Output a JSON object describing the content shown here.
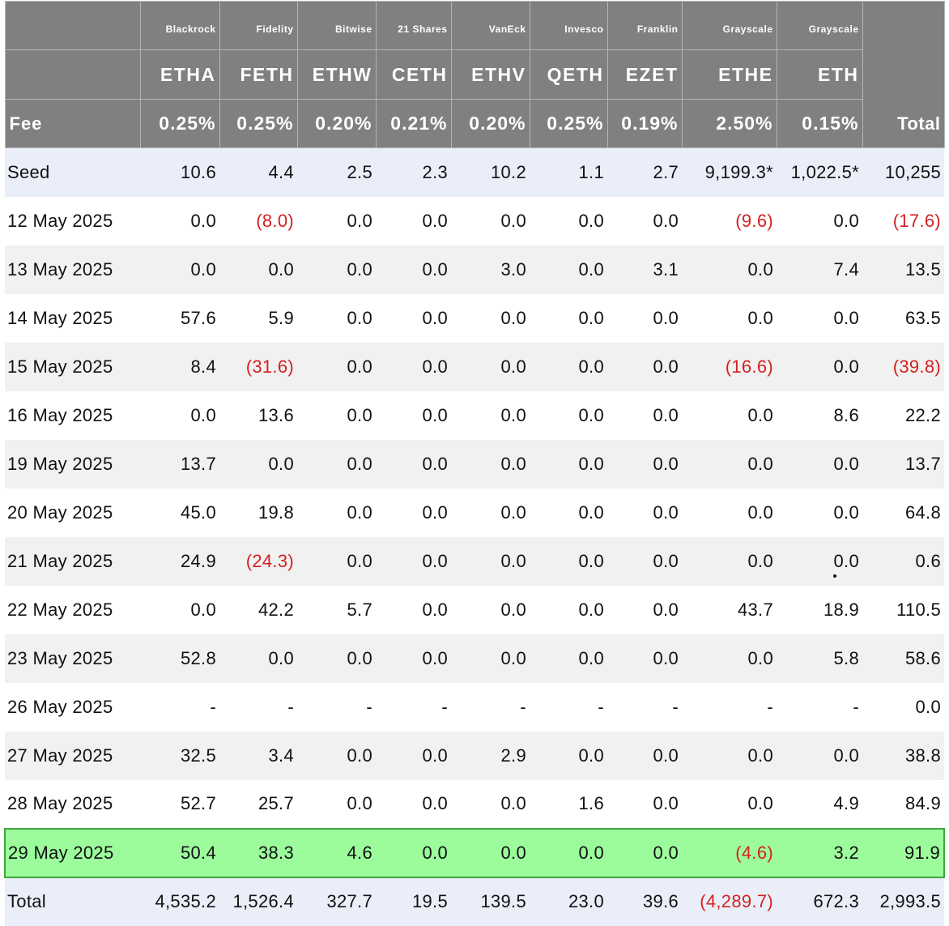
{
  "chart_data": {
    "type": "table",
    "corner_label": "Fee",
    "total_header": "Total",
    "columns": [
      {
        "issuer": "Blackrock",
        "ticker": "ETHA",
        "fee": "0.25%"
      },
      {
        "issuer": "Fidelity",
        "ticker": "FETH",
        "fee": "0.25%"
      },
      {
        "issuer": "Bitwise",
        "ticker": "ETHW",
        "fee": "0.20%"
      },
      {
        "issuer": "21 Shares",
        "ticker": "CETH",
        "fee": "0.21%"
      },
      {
        "issuer": "VanEck",
        "ticker": "ETHV",
        "fee": "0.20%"
      },
      {
        "issuer": "Invesco",
        "ticker": "QETH",
        "fee": "0.25%"
      },
      {
        "issuer": "Franklin",
        "ticker": "EZET",
        "fee": "0.19%"
      },
      {
        "issuer": "Grayscale",
        "ticker": "ETHE",
        "fee": "2.50%"
      },
      {
        "issuer": "Grayscale",
        "ticker": "ETH",
        "fee": "0.15%"
      }
    ],
    "rows": [
      {
        "label": "Seed",
        "values": [
          "10.6",
          "4.4",
          "2.5",
          "2.3",
          "10.2",
          "1.1",
          "2.7",
          "9,199.3*",
          "1,022.5*"
        ],
        "total": "10,255"
      },
      {
        "label": "12 May 2025",
        "values": [
          "0.0",
          "(8.0)",
          "0.0",
          "0.0",
          "0.0",
          "0.0",
          "0.0",
          "(9.6)",
          "0.0"
        ],
        "total": "(17.6)"
      },
      {
        "label": "13 May 2025",
        "values": [
          "0.0",
          "0.0",
          "0.0",
          "0.0",
          "3.0",
          "0.0",
          "3.1",
          "0.0",
          "7.4"
        ],
        "total": "13.5"
      },
      {
        "label": "14 May 2025",
        "values": [
          "57.6",
          "5.9",
          "0.0",
          "0.0",
          "0.0",
          "0.0",
          "0.0",
          "0.0",
          "0.0"
        ],
        "total": "63.5"
      },
      {
        "label": "15 May 2025",
        "values": [
          "8.4",
          "(31.6)",
          "0.0",
          "0.0",
          "0.0",
          "0.0",
          "0.0",
          "(16.6)",
          "0.0"
        ],
        "total": "(39.8)"
      },
      {
        "label": "16 May 2025",
        "values": [
          "0.0",
          "13.6",
          "0.0",
          "0.0",
          "0.0",
          "0.0",
          "0.0",
          "0.0",
          "8.6"
        ],
        "total": "22.2"
      },
      {
        "label": "19 May 2025",
        "values": [
          "13.7",
          "0.0",
          "0.0",
          "0.0",
          "0.0",
          "0.0",
          "0.0",
          "0.0",
          "0.0"
        ],
        "total": "13.7"
      },
      {
        "label": "20 May 2025",
        "values": [
          "45.0",
          "19.8",
          "0.0",
          "0.0",
          "0.0",
          "0.0",
          "0.0",
          "0.0",
          "0.0"
        ],
        "total": "64.8"
      },
      {
        "label": "21 May 2025",
        "values": [
          "24.9",
          "(24.3)",
          "0.0",
          "0.0",
          "0.0",
          "0.0",
          "0.0",
          "0.0",
          "0.0"
        ],
        "total": "0.6"
      },
      {
        "label": "22 May 2025",
        "values": [
          "0.0",
          "42.2",
          "5.7",
          "0.0",
          "0.0",
          "0.0",
          "0.0",
          "43.7",
          "18.9"
        ],
        "total": "110.5"
      },
      {
        "label": "23 May 2025",
        "values": [
          "52.8",
          "0.0",
          "0.0",
          "0.0",
          "0.0",
          "0.0",
          "0.0",
          "0.0",
          "5.8"
        ],
        "total": "58.6"
      },
      {
        "label": "26 May 2025",
        "values": [
          "-",
          "-",
          "-",
          "-",
          "-",
          "-",
          "-",
          "-",
          "-"
        ],
        "total": "0.0"
      },
      {
        "label": "27 May 2025",
        "values": [
          "32.5",
          "3.4",
          "0.0",
          "0.0",
          "2.9",
          "0.0",
          "0.0",
          "0.0",
          "0.0"
        ],
        "total": "38.8"
      },
      {
        "label": "28 May 2025",
        "values": [
          "52.7",
          "25.7",
          "0.0",
          "0.0",
          "0.0",
          "1.6",
          "0.0",
          "0.0",
          "4.9"
        ],
        "total": "84.9"
      },
      {
        "label": "29 May 2025",
        "values": [
          "50.4",
          "38.3",
          "4.6",
          "0.0",
          "0.0",
          "0.0",
          "0.0",
          "(4.6)",
          "3.2"
        ],
        "total": "91.9",
        "highlighted": true
      },
      {
        "label": "Total",
        "values": [
          "4,535.2",
          "1,526.4",
          "327.7",
          "19.5",
          "139.5",
          "23.0",
          "39.6",
          "(4,289.7)",
          "672.3"
        ],
        "total": "2,993.5"
      }
    ],
    "colors": {
      "header_bg": "#808080",
      "header_text": "#ffffff",
      "negative_text": "#d42020",
      "seed_total_bg": "#e9eef8",
      "alt_row_bg": "#f1f1f1",
      "highlight_bg": "#9cfc9c",
      "highlight_border": "#3ea63e"
    }
  }
}
